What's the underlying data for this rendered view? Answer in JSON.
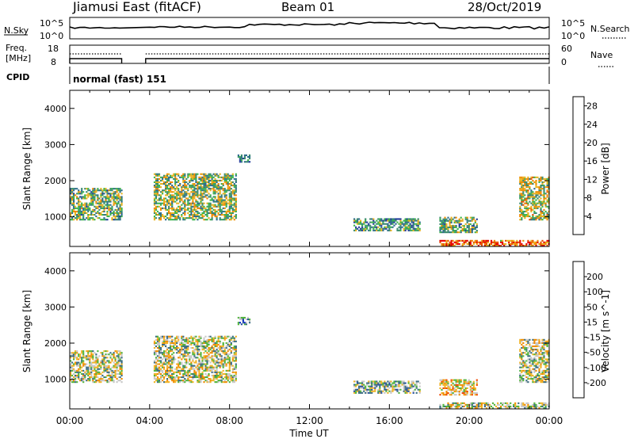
{
  "header": {
    "title": "Jiamusi East (fitACF)",
    "beam": "Beam 01",
    "date": "28/Oct/2019"
  },
  "top_panels": {
    "nsky_label": "N.Sky",
    "nsky_ticks": [
      "10^5",
      "10^0"
    ],
    "nsearch_label": "N.Search",
    "nsearch_ticks": [
      "10^5",
      "10^0"
    ],
    "freq_label_1": "Freq.",
    "freq_label_2": "[MHz]",
    "freq_ticks": [
      "18",
      "8"
    ],
    "nave_label": "Nave",
    "nave_ticks": [
      "60",
      "0"
    ],
    "cpid_label": "CPID",
    "cpid_text": "normal (fast) 151"
  },
  "colors": {
    "power_scale": [
      "#0a1ee6",
      "#233c9b",
      "#2f6e8c",
      "#3b8c6e",
      "#3cb44b",
      "#e6b422",
      "#f08c00",
      "#e65000",
      "#e60000"
    ],
    "velocity_scale": [
      "#1432c8",
      "#2850a0",
      "#3c6e82",
      "#50b43c",
      "#c8c8c8",
      "#f0b428",
      "#f08c00",
      "#f04600",
      "#e60000"
    ]
  },
  "chart_data": [
    {
      "type": "heatmap",
      "title": "Power",
      "xlabel": "Time UT",
      "ylabel": "Slant Range [km]",
      "x_ticks": [
        "00:00",
        "04:00",
        "08:00",
        "12:00",
        "16:00",
        "20:00",
        "00:00"
      ],
      "y_ticks": [
        1000,
        2000,
        3000,
        4000
      ],
      "ylim": [
        180,
        4500
      ],
      "xlim_hours": [
        0,
        24
      ],
      "colorbar_label": "Power [dB]",
      "colorbar_ticks": [
        4,
        8,
        12,
        16,
        20,
        24,
        28
      ],
      "colorbar_range": [
        0,
        30
      ],
      "echo_regions": [
        {
          "t0": 0.0,
          "t1": 2.6,
          "r0": 900,
          "r1": 1800,
          "level": 0.45
        },
        {
          "t0": 4.2,
          "t1": 8.3,
          "r0": 900,
          "r1": 2200,
          "level": 0.5
        },
        {
          "t0": 8.4,
          "t1": 9.0,
          "r0": 2500,
          "r1": 2700,
          "level": 0.35
        },
        {
          "t0": 14.2,
          "t1": 17.5,
          "r0": 600,
          "r1": 950,
          "level": 0.4
        },
        {
          "t0": 18.5,
          "t1": 20.4,
          "r0": 550,
          "r1": 1000,
          "level": 0.45
        },
        {
          "t0": 18.5,
          "t1": 24.0,
          "r0": 180,
          "r1": 350,
          "level": 0.8
        },
        {
          "t0": 22.5,
          "t1": 24.0,
          "r0": 900,
          "r1": 2100,
          "level": 0.55
        }
      ]
    },
    {
      "type": "heatmap",
      "title": "Velocity",
      "xlabel": "Time UT",
      "ylabel": "Slant Range [km]",
      "x_ticks": [
        "00:00",
        "04:00",
        "08:00",
        "12:00",
        "16:00",
        "20:00",
        "00:00"
      ],
      "y_ticks": [
        1000,
        2000,
        3000,
        4000
      ],
      "ylim": [
        180,
        4500
      ],
      "xlim_hours": [
        0,
        24
      ],
      "colorbar_label": "Velocity [m s^-1]",
      "colorbar_ticks": [
        200,
        100,
        50,
        15,
        -15,
        -50,
        -100,
        -200
      ],
      "echo_regions": [
        {
          "t0": 0.0,
          "t1": 2.6,
          "r0": 900,
          "r1": 1800,
          "level": 0.5
        },
        {
          "t0": 4.2,
          "t1": 8.3,
          "r0": 900,
          "r1": 2200,
          "level": 0.5
        },
        {
          "t0": 8.4,
          "t1": 9.0,
          "r0": 2500,
          "r1": 2700,
          "level": 0.3
        },
        {
          "t0": 14.2,
          "t1": 17.5,
          "r0": 600,
          "r1": 950,
          "level": 0.4
        },
        {
          "t0": 18.5,
          "t1": 20.4,
          "r0": 550,
          "r1": 1000,
          "level": 0.6
        },
        {
          "t0": 18.5,
          "t1": 24.0,
          "r0": 180,
          "r1": 350,
          "level": 0.5
        },
        {
          "t0": 22.5,
          "t1": 24.0,
          "r0": 900,
          "r1": 2100,
          "level": 0.5
        }
      ]
    }
  ]
}
